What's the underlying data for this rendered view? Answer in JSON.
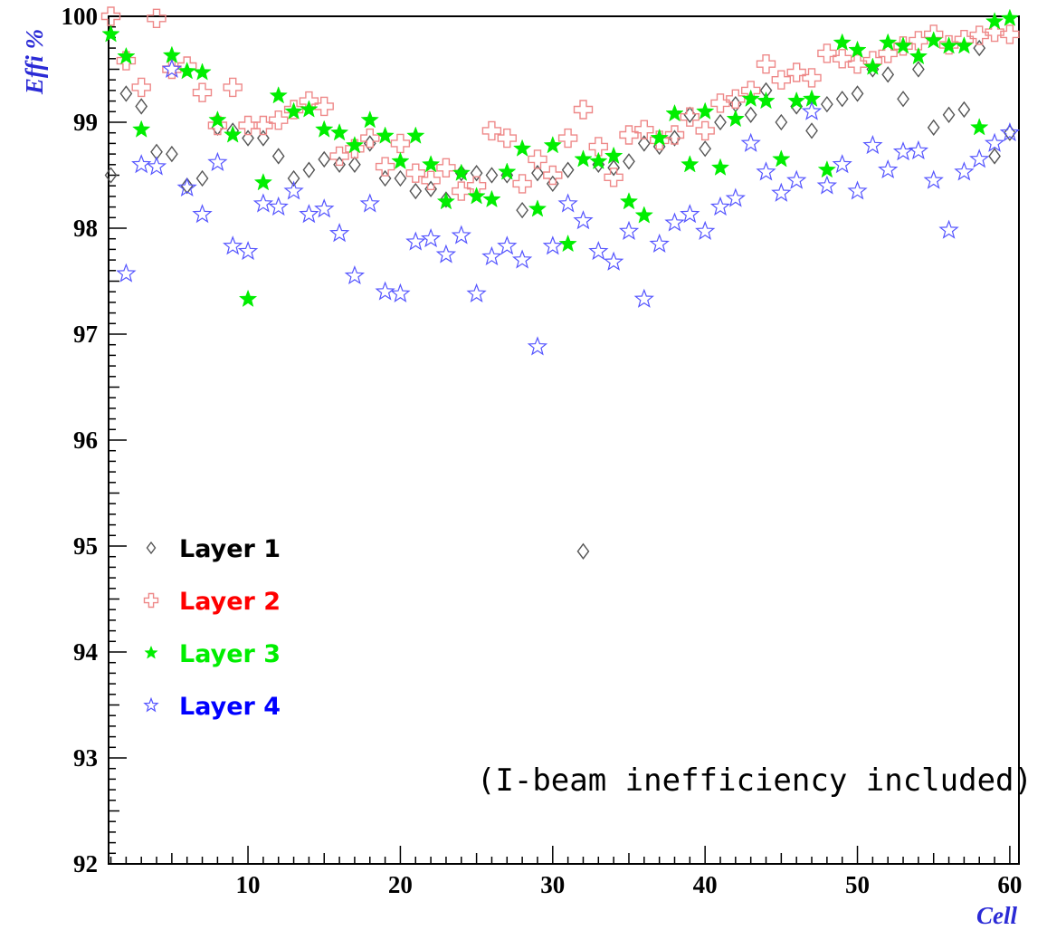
{
  "chart_data": {
    "type": "scatter",
    "title": "",
    "xlabel": "Cell",
    "ylabel": "Effi %",
    "xlim": [
      1,
      60
    ],
    "ylim": [
      92,
      100
    ],
    "x_ticks": [
      10,
      20,
      30,
      40,
      50,
      60
    ],
    "y_ticks": [
      92,
      93,
      94,
      95,
      96,
      97,
      98,
      99,
      100
    ],
    "annotation": "(I-beam inefficiency included)",
    "legend_position": "left",
    "grid": false,
    "series": [
      {
        "name": "Layer 1",
        "marker": "open-diamond",
        "color": "#555555",
        "label_color": "#000000",
        "x": [
          1,
          2,
          3,
          4,
          5,
          6,
          7,
          8,
          9,
          10,
          11,
          12,
          13,
          14,
          15,
          16,
          17,
          18,
          19,
          20,
          21,
          22,
          23,
          24,
          25,
          26,
          27,
          28,
          29,
          30,
          31,
          32,
          33,
          34,
          35,
          36,
          37,
          38,
          39,
          40,
          41,
          42,
          43,
          44,
          45,
          46,
          47,
          48,
          49,
          50,
          51,
          52,
          53,
          54,
          55,
          56,
          57,
          58,
          59,
          60
        ],
        "y": [
          98.5,
          99.27,
          99.15,
          98.72,
          98.7,
          98.4,
          98.47,
          98.95,
          98.92,
          98.85,
          98.85,
          98.68,
          98.47,
          98.55,
          98.65,
          98.6,
          98.6,
          98.8,
          98.47,
          98.47,
          98.35,
          98.37,
          98.27,
          98.52,
          98.52,
          98.5,
          98.5,
          98.17,
          98.52,
          98.42,
          98.55,
          94.95,
          98.6,
          98.57,
          98.63,
          98.8,
          98.77,
          98.85,
          99.07,
          98.75,
          99.0,
          99.17,
          99.07,
          99.3,
          99.0,
          99.15,
          98.92,
          99.17,
          99.22,
          99.27,
          99.5,
          99.45,
          99.22,
          99.5,
          98.95,
          99.07,
          99.12,
          99.7,
          98.68,
          98.9
        ]
      },
      {
        "name": "Layer 2",
        "marker": "open-cross",
        "color": "#ee8888",
        "label_color": "#ff0000",
        "x": [
          1,
          2,
          3,
          4,
          5,
          6,
          7,
          8,
          9,
          10,
          11,
          12,
          13,
          14,
          15,
          16,
          17,
          18,
          19,
          20,
          21,
          22,
          23,
          24,
          25,
          26,
          27,
          28,
          29,
          30,
          31,
          32,
          33,
          34,
          35,
          36,
          37,
          38,
          39,
          40,
          41,
          42,
          43,
          44,
          45,
          46,
          47,
          48,
          49,
          50,
          51,
          52,
          53,
          54,
          55,
          56,
          57,
          58,
          59,
          60
        ],
        "y": [
          100.0,
          99.58,
          99.33,
          99.98,
          99.5,
          99.53,
          99.28,
          98.97,
          99.33,
          98.97,
          98.97,
          99.02,
          99.12,
          99.2,
          99.15,
          98.68,
          98.75,
          98.85,
          98.58,
          98.8,
          98.52,
          98.45,
          98.57,
          98.35,
          98.4,
          98.92,
          98.85,
          98.42,
          98.65,
          98.5,
          98.85,
          99.12,
          98.77,
          98.48,
          98.88,
          98.93,
          98.83,
          98.88,
          99.05,
          98.92,
          99.18,
          99.22,
          99.3,
          99.55,
          99.4,
          99.47,
          99.42,
          99.65,
          99.6,
          99.55,
          99.58,
          99.65,
          99.72,
          99.77,
          99.83,
          99.73,
          99.78,
          99.82,
          99.85,
          99.83
        ]
      },
      {
        "name": "Layer 3",
        "marker": "filled-star",
        "color": "#00ee00",
        "label_color": "#00ee00",
        "x": [
          1,
          2,
          3,
          4,
          5,
          6,
          7,
          8,
          9,
          10,
          11,
          12,
          13,
          14,
          15,
          16,
          17,
          18,
          19,
          20,
          21,
          22,
          23,
          24,
          25,
          26,
          27,
          28,
          29,
          30,
          31,
          32,
          33,
          34,
          35,
          36,
          37,
          38,
          39,
          40,
          41,
          42,
          43,
          44,
          45,
          46,
          47,
          48,
          49,
          50,
          51,
          52,
          53,
          54,
          55,
          56,
          57,
          58,
          59,
          60
        ],
        "y": [
          99.83,
          99.62,
          98.93,
          null,
          99.63,
          99.48,
          99.47,
          99.02,
          98.88,
          97.33,
          98.43,
          99.25,
          99.1,
          99.12,
          98.93,
          98.9,
          98.78,
          99.02,
          98.87,
          98.63,
          98.87,
          98.6,
          98.25,
          98.52,
          98.3,
          98.27,
          98.53,
          98.75,
          98.18,
          98.78,
          97.85,
          98.65,
          98.63,
          98.68,
          98.25,
          98.12,
          98.85,
          99.08,
          98.6,
          99.1,
          98.57,
          99.03,
          99.22,
          99.2,
          98.65,
          99.2,
          99.22,
          98.55,
          99.75,
          99.68,
          99.52,
          99.75,
          99.72,
          99.62,
          99.77,
          99.72,
          99.72,
          98.95,
          99.95,
          99.98
        ]
      },
      {
        "name": "Layer 4",
        "marker": "open-star",
        "color": "#5555ff",
        "label_color": "#0000ff",
        "x": [
          1,
          2,
          3,
          4,
          5,
          6,
          7,
          8,
          9,
          10,
          11,
          12,
          13,
          14,
          15,
          16,
          17,
          18,
          19,
          20,
          21,
          22,
          23,
          24,
          25,
          26,
          27,
          28,
          29,
          30,
          31,
          32,
          33,
          34,
          35,
          36,
          37,
          38,
          39,
          40,
          41,
          42,
          43,
          44,
          45,
          46,
          47,
          48,
          49,
          50,
          51,
          52,
          53,
          54,
          55,
          56,
          57,
          58,
          59,
          60
        ],
        "y": [
          null,
          97.57,
          98.6,
          98.58,
          99.5,
          98.38,
          98.13,
          98.62,
          97.83,
          97.78,
          98.23,
          98.2,
          98.35,
          98.13,
          98.18,
          97.95,
          97.55,
          98.23,
          97.4,
          97.38,
          97.87,
          97.9,
          97.75,
          97.93,
          97.38,
          97.73,
          97.83,
          97.7,
          96.88,
          97.83,
          98.23,
          98.07,
          97.78,
          97.68,
          97.97,
          97.33,
          97.85,
          98.05,
          98.13,
          97.97,
          98.2,
          98.28,
          98.8,
          98.53,
          98.33,
          98.45,
          99.1,
          98.4,
          98.6,
          98.35,
          98.78,
          98.55,
          98.72,
          98.73,
          98.45,
          97.98,
          98.53,
          98.65,
          98.8,
          98.9
        ]
      }
    ]
  }
}
